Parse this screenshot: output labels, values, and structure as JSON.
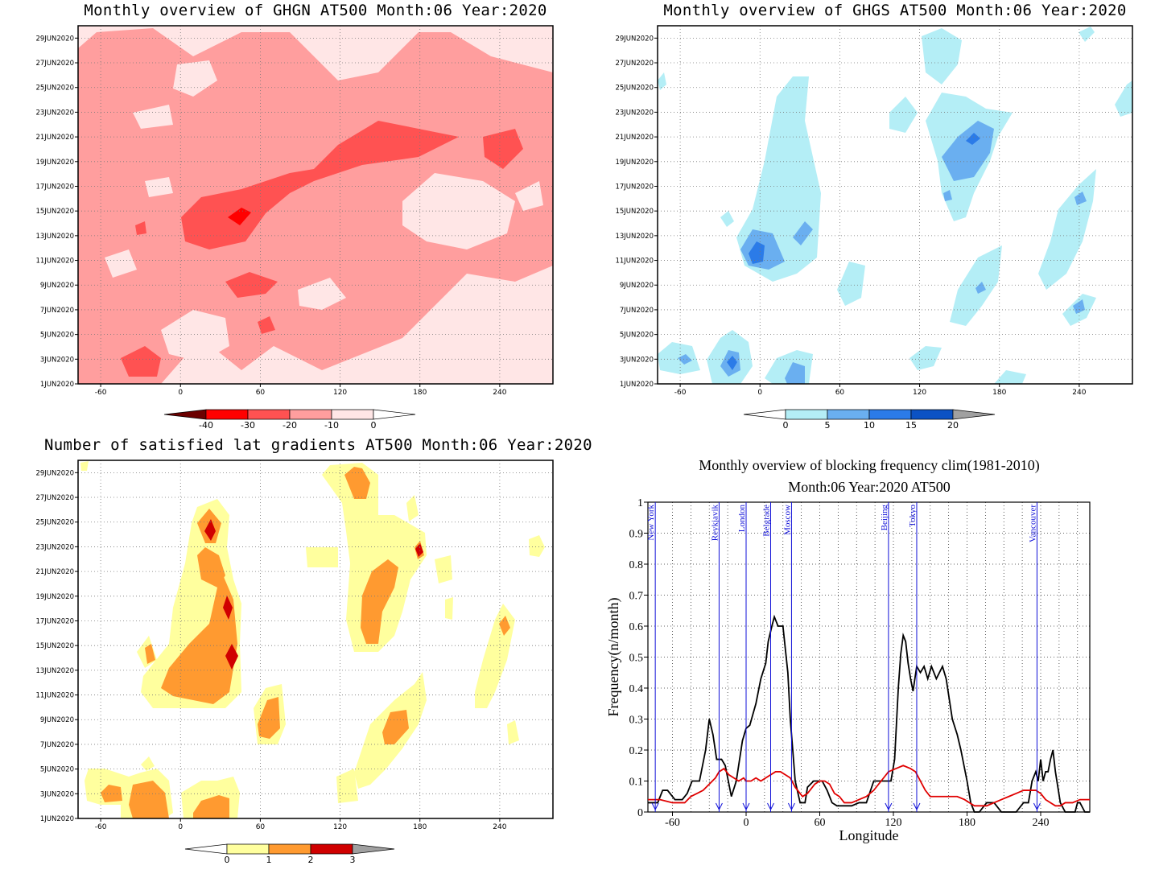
{
  "y_ticks": [
    "1JUN2020",
    "3JUN2020",
    "5JUN2020",
    "7JUN2020",
    "9JUN2020",
    "11JUN2020",
    "13JUN2020",
    "15JUN2020",
    "17JUN2020",
    "19JUN2020",
    "21JUN2020",
    "23JUN2020",
    "25JUN2020",
    "27JUN2020",
    "29JUN2020"
  ],
  "chart_data": [
    {
      "type": "heatmap",
      "title": "Monthly overview of GHGN AT500 Month:06 Year:2020",
      "x_ticks": [
        -60,
        0,
        60,
        120,
        180,
        240
      ],
      "xlim": [
        -77,
        280
      ],
      "ylim": [
        1,
        30
      ],
      "legend": {
        "labels": [
          "-40",
          "-30",
          "-20",
          "-10",
          "0"
        ],
        "colors": [
          "#6b0000",
          "#ff0000",
          "#ff5252",
          "#ff9e9e",
          "#ffe6e6",
          "#ffffff"
        ]
      }
    },
    {
      "type": "heatmap",
      "title": "Monthly overview of GHGS AT500 Month:06 Year:2020",
      "x_ticks": [
        -60,
        0,
        60,
        120,
        180,
        240
      ],
      "xlim": [
        -77,
        280
      ],
      "ylim": [
        1,
        30
      ],
      "legend": {
        "labels": [
          "0",
          "5",
          "10",
          "15",
          "20"
        ],
        "colors": [
          "#ffffff",
          "#b4eef6",
          "#6aaff0",
          "#2b7be8",
          "#0b52c4",
          "#a0a0a0"
        ]
      }
    },
    {
      "type": "heatmap",
      "title": "Number of satisfied lat gradients AT500 Month:06 Year:2020",
      "x_ticks": [
        -60,
        0,
        60,
        120,
        180,
        240
      ],
      "xlim": [
        -77,
        280
      ],
      "ylim": [
        1,
        30
      ],
      "legend": {
        "labels": [
          "0",
          "1",
          "2",
          "3"
        ],
        "colors": [
          "#ffffff",
          "#ffff9e",
          "#ff9a30",
          "#d00000",
          "#a0a0a0"
        ]
      }
    },
    {
      "type": "line",
      "title": "Monthly overview of blocking frequency clim(1981-2010)",
      "subtitle": "Month:06 Year:2020  AT500",
      "xlabel": "Longitude",
      "ylabel": "Frequency(n/month)",
      "xlim": [
        -80,
        280
      ],
      "ylim": [
        0,
        1
      ],
      "x_ticks": [
        -60,
        0,
        60,
        120,
        180,
        240
      ],
      "y_ticks": [
        0,
        0.1,
        0.2,
        0.3,
        0.4,
        0.5,
        0.6,
        0.7,
        0.8,
        0.9,
        1
      ],
      "grid": true,
      "series": [
        {
          "color": "#000000",
          "x": [
            -80,
            -72,
            -68,
            -64,
            -58,
            -52,
            -48,
            -44,
            -38,
            -33,
            -30,
            -27,
            -24,
            -20,
            -17,
            -12,
            -8,
            -3,
            0,
            3,
            8,
            12,
            16,
            18,
            21,
            23,
            26,
            30,
            34,
            36,
            40,
            44,
            48,
            50,
            55,
            58,
            62,
            66,
            70,
            74,
            80,
            86,
            92,
            98,
            104,
            108,
            112,
            116,
            118,
            121,
            124,
            126,
            128,
            130,
            132,
            134,
            136,
            139,
            142,
            145,
            148,
            151,
            155,
            160,
            163,
            168,
            172,
            175,
            180,
            183,
            186,
            190,
            196,
            202,
            208,
            214,
            220,
            226,
            230,
            233,
            236,
            238,
            240,
            242,
            244,
            246,
            248,
            250,
            252,
            256,
            260,
            264,
            268,
            270,
            272,
            276,
            280
          ],
          "y": [
            0.03,
            0.03,
            0.07,
            0.07,
            0.04,
            0.04,
            0.06,
            0.1,
            0.1,
            0.2,
            0.3,
            0.25,
            0.17,
            0.17,
            0.15,
            0.05,
            0.1,
            0.23,
            0.27,
            0.28,
            0.35,
            0.43,
            0.48,
            0.55,
            0.6,
            0.63,
            0.6,
            0.6,
            0.45,
            0.3,
            0.1,
            0.03,
            0.03,
            0.08,
            0.1,
            0.1,
            0.1,
            0.07,
            0.03,
            0.02,
            0.02,
            0.02,
            0.03,
            0.03,
            0.1,
            0.1,
            0.1,
            0.1,
            0.1,
            0.17,
            0.4,
            0.51,
            0.57,
            0.55,
            0.48,
            0.43,
            0.39,
            0.47,
            0.45,
            0.47,
            0.43,
            0.47,
            0.43,
            0.47,
            0.43,
            0.3,
            0.25,
            0.2,
            0.1,
            0.03,
            0.0,
            0.0,
            0.03,
            0.03,
            0.0,
            0.0,
            0.0,
            0.03,
            0.03,
            0.1,
            0.13,
            0.1,
            0.17,
            0.1,
            0.13,
            0.13,
            0.17,
            0.2,
            0.13,
            0.03,
            0.0,
            0.0,
            0.0,
            0.03,
            0.03,
            0.0,
            0.0
          ]
        },
        {
          "color": "#e00000",
          "x": [
            -80,
            -70,
            -60,
            -50,
            -45,
            -40,
            -35,
            -30,
            -25,
            -22,
            -18,
            -14,
            -10,
            -6,
            -2,
            0,
            4,
            8,
            12,
            16,
            20,
            24,
            28,
            32,
            36,
            40,
            46,
            50,
            56,
            60,
            64,
            68,
            72,
            76,
            80,
            86,
            92,
            98,
            104,
            110,
            116,
            122,
            128,
            134,
            138,
            142,
            146,
            150,
            154,
            160,
            166,
            172,
            178,
            182,
            186,
            190,
            196,
            202,
            208,
            214,
            220,
            226,
            232,
            236,
            240,
            244,
            248,
            252,
            256,
            260,
            266,
            272,
            280
          ],
          "y": [
            0.04,
            0.04,
            0.03,
            0.03,
            0.05,
            0.06,
            0.07,
            0.09,
            0.11,
            0.13,
            0.14,
            0.12,
            0.11,
            0.1,
            0.11,
            0.1,
            0.1,
            0.11,
            0.1,
            0.11,
            0.12,
            0.13,
            0.13,
            0.12,
            0.11,
            0.08,
            0.05,
            0.06,
            0.09,
            0.1,
            0.1,
            0.09,
            0.06,
            0.05,
            0.03,
            0.03,
            0.04,
            0.05,
            0.07,
            0.1,
            0.13,
            0.14,
            0.15,
            0.14,
            0.13,
            0.1,
            0.07,
            0.05,
            0.05,
            0.05,
            0.05,
            0.05,
            0.04,
            0.03,
            0.02,
            0.02,
            0.02,
            0.03,
            0.04,
            0.05,
            0.06,
            0.07,
            0.07,
            0.07,
            0.06,
            0.04,
            0.03,
            0.02,
            0.02,
            0.03,
            0.03,
            0.04,
            0.04
          ]
        }
      ],
      "cities": [
        {
          "name": "New York",
          "lon": -74
        },
        {
          "name": "Reykjavik",
          "lon": -22
        },
        {
          "name": "London",
          "lon": 0
        },
        {
          "name": "Belgrade",
          "lon": 20
        },
        {
          "name": "Moscow",
          "lon": 37
        },
        {
          "name": "Beijing",
          "lon": 116
        },
        {
          "name": "Tokyo",
          "lon": 139
        },
        {
          "name": "Vancouver",
          "lon": 237
        }
      ]
    }
  ]
}
